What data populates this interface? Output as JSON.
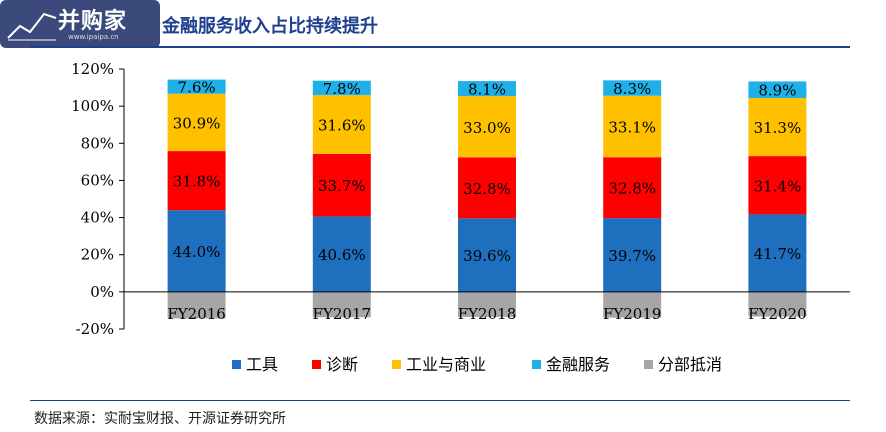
{
  "header": {
    "logo_text": "并购家",
    "logo_url": "www.ipaipa.cn",
    "title": "金融服务收入占比持续提升"
  },
  "source": "数据来源：实耐宝财报、开源证券研究所",
  "chart_data": {
    "type": "bar",
    "stacked": true,
    "categories": [
      "FY2016",
      "FY2017",
      "FY2018",
      "FY2019",
      "FY2020"
    ],
    "ylim": [
      -20,
      120
    ],
    "yticks": [
      "120%",
      "100%",
      "80%",
      "60%",
      "40%",
      "20%",
      "0%",
      "-20%"
    ],
    "legend_position": "bottom",
    "series": [
      {
        "name": "工具",
        "color": "#1f6fbf",
        "values": [
          44.0,
          40.6,
          39.6,
          39.7,
          41.7
        ],
        "labels": [
          "44.0%",
          "40.6%",
          "39.6%",
          "39.7%",
          "41.7%"
        ]
      },
      {
        "name": "诊断",
        "color": "#ff0000",
        "values": [
          31.8,
          33.7,
          32.8,
          32.8,
          31.4
        ],
        "labels": [
          "31.8%",
          "33.7%",
          "32.8%",
          "32.8%",
          "31.4%"
        ]
      },
      {
        "name": "工业与商业",
        "color": "#ffc000",
        "values": [
          30.9,
          31.6,
          33.0,
          33.1,
          31.3
        ],
        "labels": [
          "30.9%",
          "31.6%",
          "33.0%",
          "33.1%",
          "31.3%"
        ]
      },
      {
        "name": "金融服务",
        "color": "#1fb0e8",
        "values": [
          7.6,
          7.8,
          8.1,
          8.3,
          8.9
        ],
        "labels": [
          "7.6%",
          "7.8%",
          "8.1%",
          "8.3%",
          "8.9%"
        ]
      },
      {
        "name": "分部抵消",
        "color": "#a6a6a6",
        "values": [
          -14.3,
          -13.7,
          -13.5,
          -13.9,
          -13.3
        ],
        "labels": []
      }
    ]
  }
}
